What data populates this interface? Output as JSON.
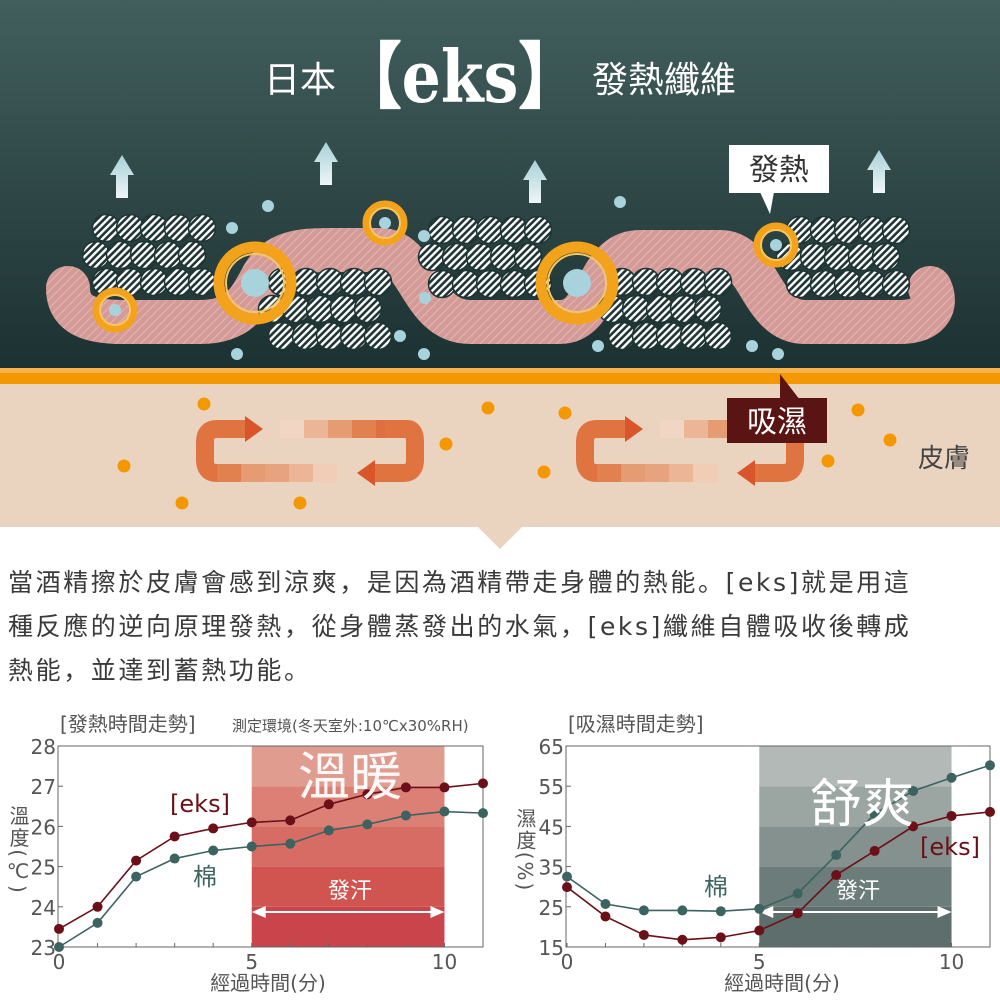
{
  "header": {
    "title_prefix": "日本",
    "brand": "【eks】",
    "title_suffix": "發熱纖維"
  },
  "illustration": {
    "heat_callout": "發熱",
    "absorb_callout": "吸濕",
    "skin_label": "皮膚",
    "colors": {
      "fabric_bg_top": "#415f5d",
      "fabric_bg_bottom": "#1d3232",
      "skin": "#ead4c0",
      "orange_line": "#f39800",
      "fiber_band": "#d49a98",
      "ring": "#f2a31b",
      "water": "#a8d3dc",
      "absorb_box": "#5a1414"
    }
  },
  "description": {
    "lines": [
      "當酒精擦於皮膚會感到涼爽，是因為酒精帶走身體的熱能。[eks]就是用這",
      "種反應的逆向原理發熱，從身體蒸發出的水氣，[eks]纖維自體吸收後轉成",
      "熱能，並達到蓄熱功能。"
    ]
  },
  "chart_data": [
    {
      "type": "line",
      "title": "[發熱時間走勢]",
      "note": "測定環境(冬天室外:10℃x30%RH)",
      "xlabel": "經過時間(分)",
      "ylabel": "溫度(℃)",
      "xlim": [
        0,
        11
      ],
      "ylim": [
        23,
        28
      ],
      "xticks": [
        0,
        5,
        10
      ],
      "yticks": [
        23,
        24,
        25,
        26,
        27,
        28
      ],
      "grid": false,
      "x": [
        0,
        1,
        2,
        3,
        4,
        5,
        6,
        7,
        8,
        9,
        10,
        11
      ],
      "series": [
        {
          "name": "[eks]",
          "color": "#6b1018",
          "values": [
            23.45,
            24.0,
            25.15,
            25.75,
            25.95,
            26.1,
            26.15,
            26.55,
            26.8,
            26.97,
            26.97,
            27.07
          ]
        },
        {
          "name": "棉",
          "color": "#3d6360",
          "values": [
            23.0,
            23.6,
            24.75,
            25.2,
            25.4,
            25.5,
            25.57,
            25.9,
            26.05,
            26.27,
            26.37,
            26.33
          ]
        }
      ],
      "highlight": {
        "range": [
          5,
          10
        ],
        "label": "溫暖",
        "arrow_label": "發汗",
        "band_colors": [
          "#c9444b",
          "#d05551",
          "#d66c64",
          "#dc8076",
          "#e19c90"
        ]
      }
    },
    {
      "type": "line",
      "title": "[吸濕時間走勢]",
      "xlabel": "經過時間(分)",
      "ylabel": "濕度(%)",
      "xlim": [
        0,
        11
      ],
      "ylim": [
        15,
        65
      ],
      "xticks": [
        0,
        5,
        10
      ],
      "yticks": [
        15,
        25,
        35,
        45,
        55,
        65
      ],
      "grid": false,
      "x": [
        0,
        1,
        2,
        3,
        4,
        5,
        6,
        7,
        8,
        9,
        10,
        11
      ],
      "series": [
        {
          "name": "棉",
          "color": "#3d6360",
          "values": [
            32.5,
            25.7,
            24.1,
            24.1,
            23.9,
            24.5,
            28.3,
            37.9,
            48.1,
            53.8,
            57.1,
            60.2
          ]
        },
        {
          "name": "[eks]",
          "color": "#6b1018",
          "values": [
            29.9,
            22.6,
            18.0,
            16.8,
            17.4,
            19.1,
            23.4,
            32.9,
            38.9,
            45.0,
            47.6,
            48.6
          ]
        }
      ],
      "highlight": {
        "range": [
          5,
          10
        ],
        "label": "舒爽",
        "arrow_label": "發汗",
        "band_colors": [
          "#5d6e6c",
          "#6c7c7a",
          "#85918f",
          "#9ba5a2",
          "#b2b9b6"
        ]
      }
    }
  ]
}
